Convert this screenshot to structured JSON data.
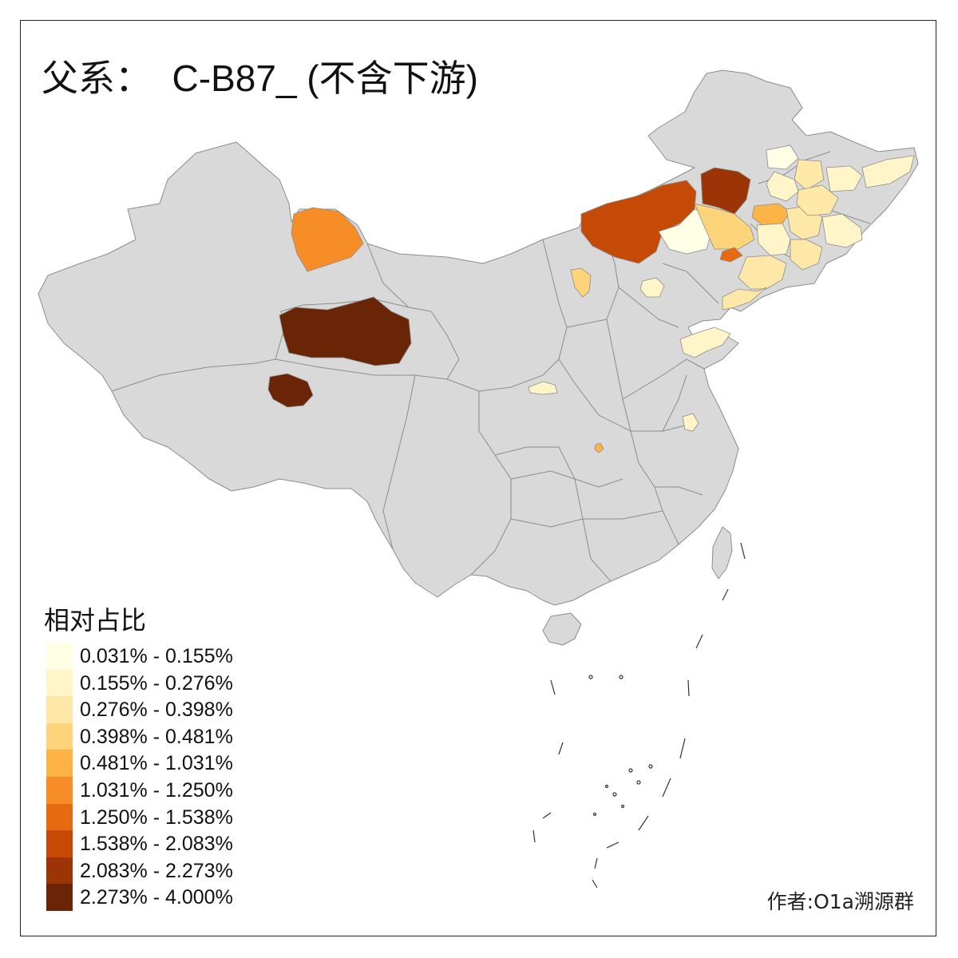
{
  "title": "父系：  C-B87_ (不含下游)",
  "legend": {
    "title": "相对占比",
    "items": [
      {
        "label": "0.031% - 0.155%",
        "color": "#ffffe5"
      },
      {
        "label": "0.155% - 0.276%",
        "color": "#fff5c9"
      },
      {
        "label": "0.276% - 0.398%",
        "color": "#fee8a8"
      },
      {
        "label": "0.398% - 0.481%",
        "color": "#fed47a"
      },
      {
        "label": "0.481% - 1.031%",
        "color": "#fdb444"
      },
      {
        "label": "1.031% - 1.250%",
        "color": "#f68d26"
      },
      {
        "label": "1.250% - 1.538%",
        "color": "#e56a12"
      },
      {
        "label": "1.538% - 2.083%",
        "color": "#c44a05"
      },
      {
        "label": "2.083% - 2.273%",
        "color": "#9c3406"
      },
      {
        "label": "2.273% - 4.000%",
        "color": "#6a2506"
      }
    ]
  },
  "credit": "作者:O1a溯源群",
  "colors": {
    "land": "#d9d9d9",
    "border": "#8c8c8c",
    "frame": "#222222"
  }
}
